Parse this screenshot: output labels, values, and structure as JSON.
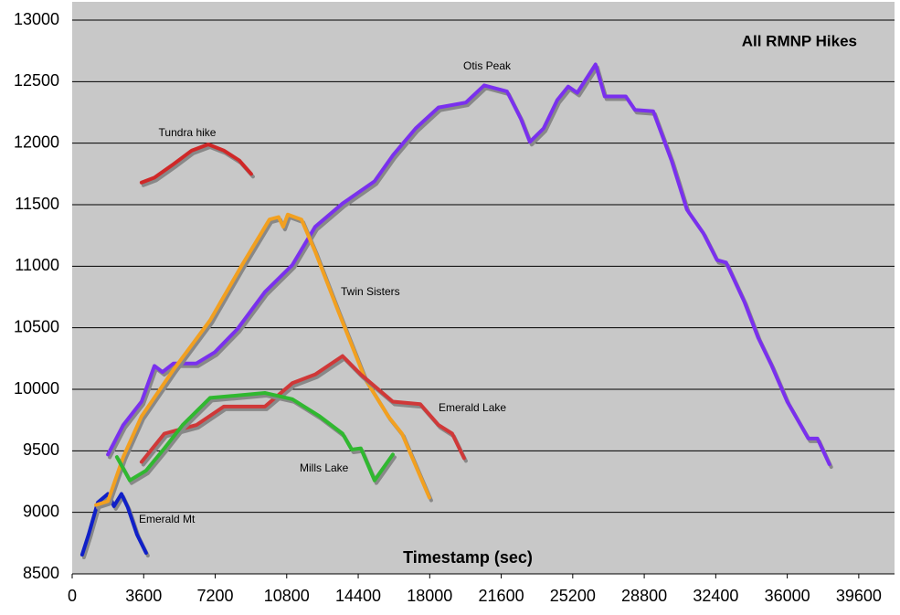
{
  "chart_data": {
    "type": "line",
    "title": "All RMNP Hikes",
    "x_label": "Timestamp (sec)",
    "xlim": [
      0,
      41400
    ],
    "xticks": [
      0,
      3600,
      7200,
      10800,
      14400,
      18000,
      21600,
      25200,
      28800,
      32400,
      36000,
      39600
    ],
    "ylim": [
      8500,
      13000
    ],
    "yticks": [
      8500,
      9000,
      9500,
      10000,
      10500,
      11000,
      11500,
      12000,
      12500,
      13000
    ],
    "grid": true,
    "series": [
      {
        "name": "Emerald Mt",
        "color": "#1020c8",
        "x": [
          500,
          830,
          1290,
          1800,
          2100,
          2480,
          2800,
          3260,
          3720
        ],
        "values": [
          8656,
          8820,
          9080,
          9150,
          9050,
          9150,
          9040,
          8820,
          8670
        ]
      },
      {
        "name": "Otis Peak",
        "color": "#7a30ee",
        "x": [
          1800,
          2570,
          3490,
          4140,
          4550,
          5100,
          6250,
          7170,
          8320,
          9700,
          11080,
          12230,
          13610,
          15220,
          16140,
          17290,
          18440,
          19820,
          20740,
          21890,
          22580,
          23040,
          23730,
          24420,
          24970,
          25430,
          26350,
          26810,
          27870,
          28330,
          29250,
          30170,
          30950,
          31770,
          32460,
          32920,
          33840,
          34530,
          35220,
          36000,
          37060,
          37520,
          38120
        ],
        "values": [
          9470,
          9710,
          9900,
          10190,
          10140,
          10210,
          10210,
          10300,
          10490,
          10790,
          11010,
          11320,
          11510,
          11690,
          11900,
          12120,
          12290,
          12330,
          12470,
          12420,
          12200,
          12010,
          12120,
          12350,
          12460,
          12410,
          12640,
          12380,
          12380,
          12270,
          12260,
          11860,
          11460,
          11270,
          11050,
          11030,
          10710,
          10420,
          10190,
          9900,
          9600,
          9600,
          9390
        ]
      },
      {
        "name": "Tundra hike",
        "color": "#d02828",
        "x": [
          3490,
          4140,
          5100,
          6020,
          6850,
          7630,
          8410,
          9010
        ],
        "values": [
          11680,
          11720,
          11830,
          11940,
          11990,
          11940,
          11860,
          11750
        ]
      },
      {
        "name": "Twin Sisters",
        "color": "#f2a020",
        "x": [
          1200,
          1800,
          2570,
          3490,
          5100,
          6940,
          8550,
          9930,
          10390,
          10620,
          10850,
          11540,
          12230,
          13380,
          14760,
          15910,
          16600,
          17980
        ],
        "values": [
          9060,
          9090,
          9450,
          9780,
          10160,
          10560,
          11010,
          11380,
          11400,
          11320,
          11420,
          11380,
          11120,
          10640,
          10080,
          9780,
          9640,
          9120
        ]
      },
      {
        "name": "Emerald Lake",
        "color": "#d03838",
        "x": [
          3490,
          4640,
          6250,
          7630,
          9700,
          11080,
          12230,
          13610,
          14530,
          16140,
          17520,
          18440,
          19130,
          19730
        ],
        "values": [
          9410,
          9640,
          9710,
          9860,
          9860,
          10050,
          10120,
          10270,
          10120,
          9900,
          9880,
          9710,
          9640,
          9440
        ]
      },
      {
        "name": "Mills Lake",
        "color": "#30b830",
        "x": [
          2250,
          2900,
          3720,
          4640,
          5560,
          6940,
          8320,
          9700,
          11080,
          12460,
          13610,
          14070,
          14530,
          15220,
          16140
        ],
        "values": [
          9450,
          9260,
          9340,
          9520,
          9710,
          9930,
          9950,
          9970,
          9920,
          9780,
          9640,
          9510,
          9520,
          9260,
          9470
        ]
      }
    ]
  }
}
